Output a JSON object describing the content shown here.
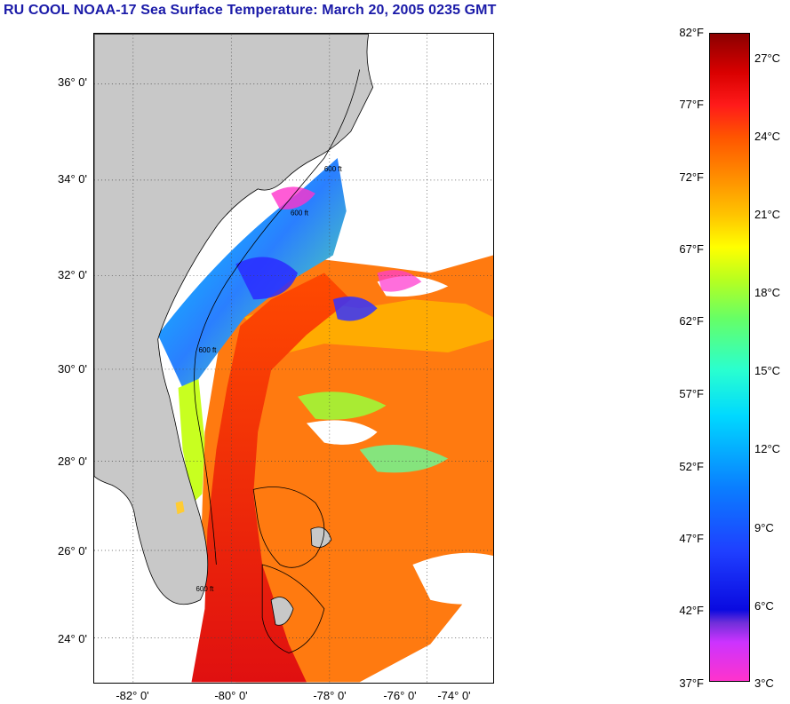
{
  "title": "RU COOL  NOAA-17  Sea Surface Temperature:  March 20, 2005 0235 GMT",
  "map": {
    "lat_ticks": [
      "36° 0'",
      "34° 0'",
      "32° 0'",
      "30° 0'",
      "28° 0'",
      "26° 0'",
      "24° 0'"
    ],
    "lon_ticks": [
      "-82° 0'",
      "-80° 0'",
      "-78° 0'",
      "-76° 0'",
      "-74° 0'"
    ],
    "contour_labels": [
      "600 ft",
      "600 ft",
      "600 ft",
      "600 ft"
    ],
    "colors": {
      "land": "#c8c8c8",
      "cloud": "#ffffff",
      "grid": "#555555"
    }
  },
  "colorbar": {
    "fahrenheit": [
      "82°F",
      "77°F",
      "72°F",
      "67°F",
      "62°F",
      "57°F",
      "52°F",
      "47°F",
      "42°F",
      "37°F"
    ],
    "celsius": [
      "27°C",
      "24°C",
      "21°C",
      "18°C",
      "15°C",
      "12°C",
      "9°C",
      "6°C",
      "3°C"
    ],
    "range_f": [
      37,
      82
    ]
  }
}
